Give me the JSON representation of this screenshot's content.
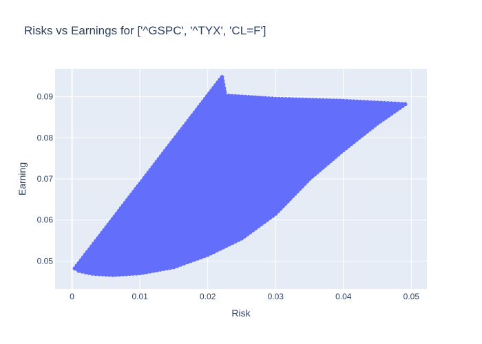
{
  "chart_data": {
    "type": "scatter",
    "title": "Risks vs Earnings for ['^GSPC', '^TYX', 'CL=F']",
    "xlabel": "Risk",
    "ylabel": "Earning",
    "xlim": [
      -0.0025,
      0.0523
    ],
    "ylim": [
      0.0432,
      0.0968
    ],
    "x_ticks": [
      0,
      0.01,
      0.02,
      0.03,
      0.04,
      0.05
    ],
    "x_tick_labels": [
      "0",
      "0.01",
      "0.02",
      "0.03",
      "0.04",
      "0.05"
    ],
    "y_ticks": [
      0.05,
      0.06,
      0.07,
      0.08,
      0.09
    ],
    "y_tick_labels": [
      "0.05",
      "0.06",
      "0.07",
      "0.08",
      "0.09"
    ],
    "grid": true,
    "series": [
      {
        "color": "#636efa",
        "description_region": {
          "vertices_data_units": [
            [
              0.0004,
              0.0482
            ],
            [
              0.0221,
              0.0948
            ],
            [
              0.0226,
              0.0903
            ],
            [
              0.03,
              0.0895
            ],
            [
              0.04,
              0.089
            ],
            [
              0.0491,
              0.0882
            ],
            [
              0.045,
              0.0835
            ],
            [
              0.04,
              0.077
            ],
            [
              0.035,
              0.07
            ],
            [
              0.03,
              0.0615
            ],
            [
              0.025,
              0.0555
            ],
            [
              0.02,
              0.0515
            ],
            [
              0.015,
              0.0485
            ],
            [
              0.01,
              0.047
            ],
            [
              0.006,
              0.0466
            ],
            [
              0.003,
              0.0469
            ],
            [
              0.001,
              0.0476
            ]
          ]
        }
      }
    ]
  }
}
